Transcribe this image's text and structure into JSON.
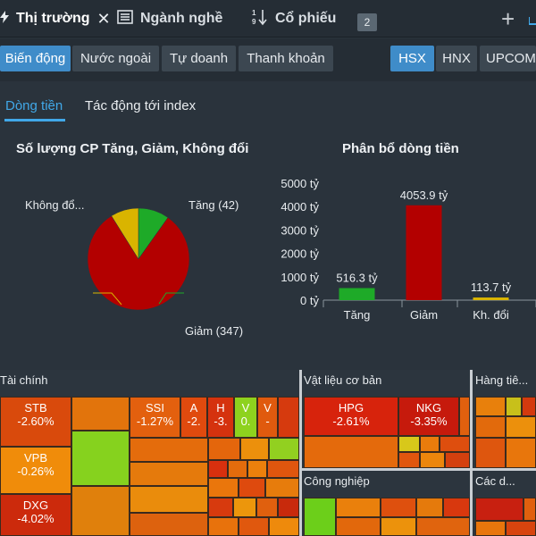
{
  "top_tabs": [
    {
      "label": "Thị trường",
      "close": "✕"
    },
    {
      "label": "Ngành nghề"
    },
    {
      "label": "Cổ phiếu"
    }
  ],
  "tab_badge": "2",
  "add_tab": "+",
  "toolbar": {
    "views": [
      "Biến động",
      "Nước ngoài",
      "Tự doanh",
      "Thanh khoản"
    ],
    "exchanges": [
      "HSX",
      "HNX",
      "UPCOM"
    ]
  },
  "sub_tabs": [
    "Dòng tiền",
    "Tác động tới index"
  ],
  "pie_title": "Số lượng CP Tăng, Giảm, Không đổi",
  "pie_labels": {
    "up": "Tăng (42)",
    "down": "Giảm (347)",
    "flat": "Không đổ..."
  },
  "bar_title": "Phân bổ dòng tiền",
  "colors": {
    "up": "#1eaa28",
    "down": "#b30000",
    "flat": "#d9b400",
    "accent": "#3f8cc9"
  },
  "chart_data": [
    {
      "type": "pie",
      "title": "Số lượng CP Tăng, Giảm, Không đổi",
      "categories": [
        "Tăng",
        "Giảm",
        "Không đổi"
      ],
      "values": [
        42,
        347,
        38
      ]
    },
    {
      "type": "bar",
      "title": "Phân bổ dòng tiền",
      "categories": [
        "Tăng",
        "Giảm",
        "Kh. đổi"
      ],
      "values": [
        516.3,
        4053.9,
        113.7
      ],
      "value_labels": [
        "516.3 tỷ",
        "4053.9 tỷ",
        "113.7 tỷ"
      ],
      "yticks": [
        "0 tỷ",
        "1000 tỷ",
        "2000 tỷ",
        "3000 tỷ",
        "4000 tỷ",
        "5000 tỷ"
      ],
      "ylim": [
        0,
        5000
      ]
    }
  ],
  "treemap": {
    "sections": [
      {
        "title": "Tài chính"
      },
      {
        "title": "Vật liệu cơ bản"
      },
      {
        "title": "Hàng tiê..."
      },
      {
        "title": "Công nghiệp"
      },
      {
        "title": "Các d..."
      }
    ],
    "cells": [
      {
        "ticker": "STB",
        "change": "-2.60%"
      },
      {
        "ticker": "VPB",
        "change": "-0.26%"
      },
      {
        "ticker": "DXG",
        "change": "-4.02%"
      },
      {
        "ticker": "SSI",
        "change": "-1.27%"
      },
      {
        "ticker": "A",
        "change": "-2."
      },
      {
        "ticker": "H",
        "change": "-3."
      },
      {
        "ticker": "V",
        "change": "0."
      },
      {
        "ticker": "V",
        "change": "-"
      },
      {
        "ticker": "HPG",
        "change": "-2.61%"
      },
      {
        "ticker": "NKG",
        "change": "-3.35%"
      }
    ]
  }
}
